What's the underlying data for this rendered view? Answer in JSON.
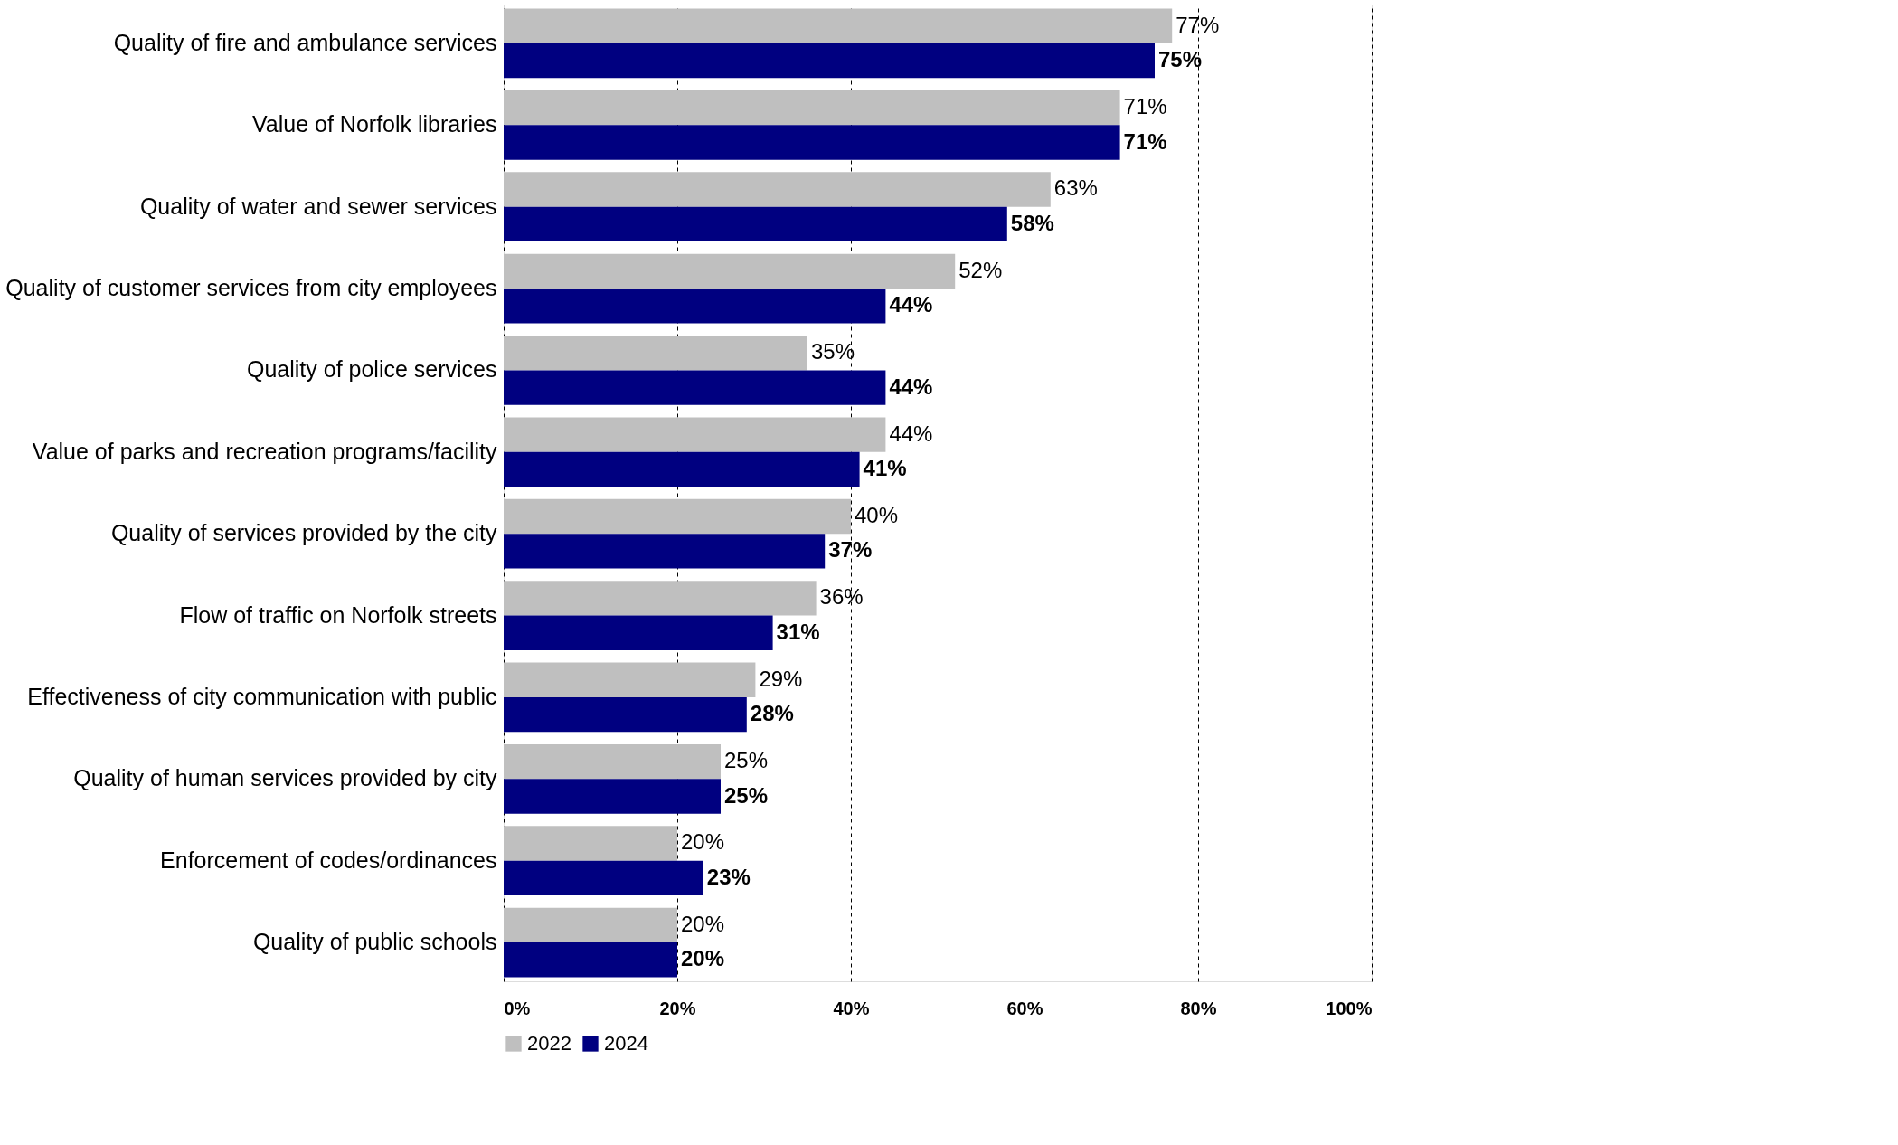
{
  "chart_data": {
    "type": "bar",
    "orientation": "horizontal",
    "categories": [
      "Quality of fire and ambulance services",
      "Value of Norfolk libraries",
      "Quality of water and sewer services",
      "Quality of customer services from city employees",
      "Quality of police services",
      "Value of parks and recreation programs/facility",
      "Quality of services provided by the city",
      "Flow of traffic on Norfolk streets",
      "Effectiveness of city communication with public",
      "Quality of human services provided by city",
      "Enforcement of codes/ordinances",
      "Quality of public schools"
    ],
    "series": [
      {
        "name": "2022",
        "color": "#bfbfbf",
        "values": [
          77,
          71,
          63,
          52,
          35,
          44,
          40,
          36,
          29,
          25,
          20,
          20
        ],
        "value_labels": [
          "77%",
          "71%",
          "63%",
          "52%",
          "35%",
          "44%",
          "40%",
          "36%",
          "29%",
          "25%",
          "20%",
          "20%"
        ]
      },
      {
        "name": "2024",
        "color": "#000080",
        "values": [
          75,
          71,
          58,
          44,
          44,
          41,
          37,
          31,
          28,
          25,
          23,
          20
        ],
        "value_labels": [
          "75%",
          "71%",
          "58%",
          "44%",
          "44%",
          "41%",
          "37%",
          "31%",
          "28%",
          "25%",
          "23%",
          "20%"
        ]
      }
    ],
    "xlim": [
      0,
      100
    ],
    "xticks": [
      {
        "value": 0,
        "label": "0%"
      },
      {
        "value": 20,
        "label": "20%"
      },
      {
        "value": 40,
        "label": "40%"
      },
      {
        "value": 60,
        "label": "60%"
      },
      {
        "value": 80,
        "label": "80%"
      },
      {
        "value": 100,
        "label": "100%"
      }
    ],
    "grid": "x",
    "legend": "bottom"
  }
}
